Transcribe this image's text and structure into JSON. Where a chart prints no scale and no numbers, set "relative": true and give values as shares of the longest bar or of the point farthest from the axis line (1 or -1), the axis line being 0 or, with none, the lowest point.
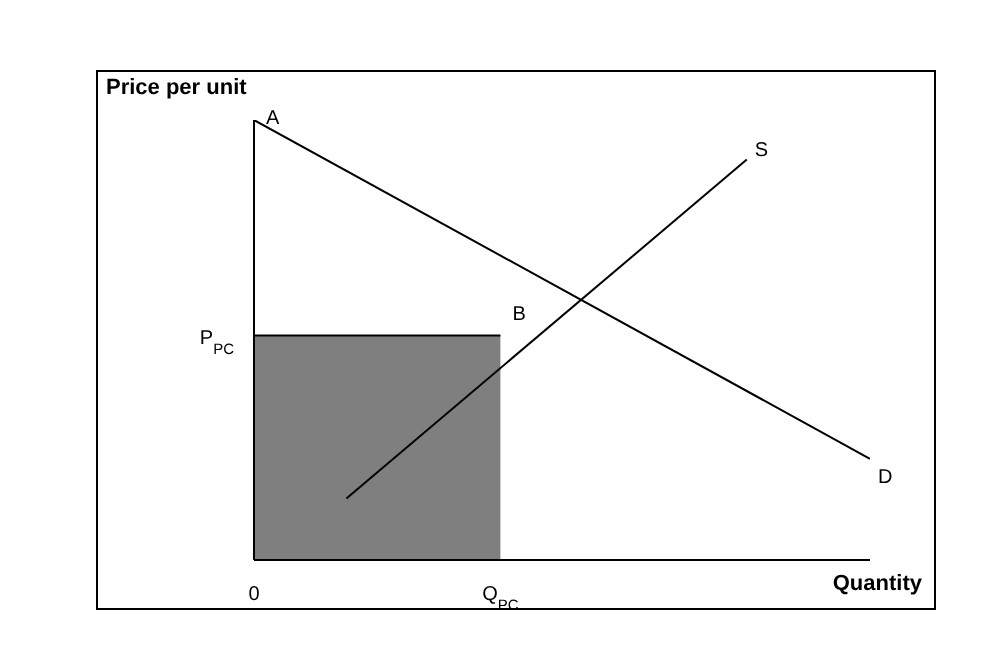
{
  "chart_data": {
    "type": "line",
    "relative": true,
    "ylabel": "Price per unit",
    "xlabel": "Quantity",
    "categories": [
      "0",
      null,
      null,
      null,
      null,
      null,
      null,
      null,
      "Q$_{PC}$",
      null,
      null,
      null,
      null,
      null,
      null,
      null,
      null,
      null,
      null,
      null,
      null
    ],
    "series": [
      {
        "type": "area",
        "color": "#7f7f7f",
        "values": [
          0.51,
          null,
          null,
          null,
          null,
          null,
          null,
          null,
          0.51,
          null,
          null,
          null,
          null,
          null,
          null,
          null,
          null,
          null,
          null,
          null,
          null
        ]
      },
      {
        "name": "D",
        "color": "#000000",
        "values": [
          1,
          null,
          null,
          null,
          null,
          null,
          null,
          null,
          null,
          null,
          null,
          null,
          null,
          null,
          null,
          null,
          null,
          null,
          null,
          null,
          0.23
        ]
      },
      {
        "name": "S",
        "color": "#000000",
        "values": [
          null,
          null,
          null,
          0.14,
          null,
          null,
          null,
          null,
          null,
          null,
          null,
          null,
          null,
          null,
          null,
          null,
          0.91,
          null,
          null,
          null,
          null
        ]
      }
    ],
    "annotations": [
      {
        "text": "A",
        "x": "0",
        "y": 1
      },
      {
        "text": "B",
        "x": "Q$_{PC}$",
        "y": 0.51
      },
      {
        "text": "P$_{PC}$",
        "x": "0",
        "y": 0.51
      }
    ]
  }
}
